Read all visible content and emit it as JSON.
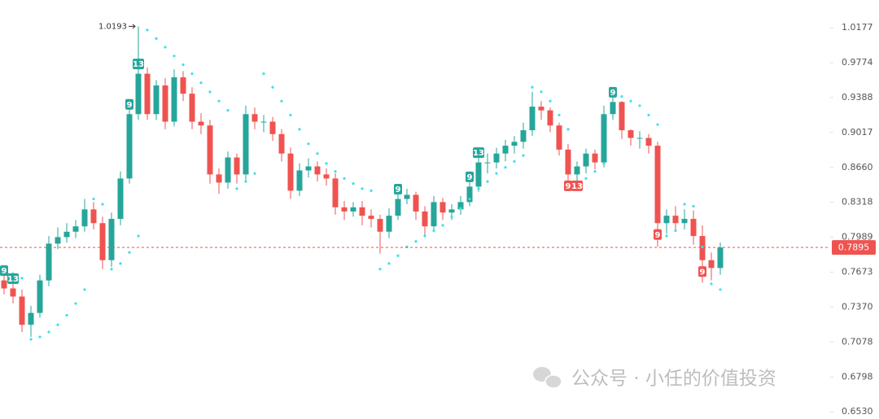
{
  "chart_data": {
    "type": "candlestick",
    "log": true,
    "ylim": [
      0.65,
      1.0508
    ],
    "yticks": [
      1.0177,
      0.9774,
      0.9388,
      0.9017,
      {
        "value": 0.866,
        "label": "0.8660"
      },
      0.8318,
      0.7989,
      0.7673,
      {
        "value": 0.737,
        "label": "0.7370"
      },
      0.7078,
      0.6798,
      {
        "value": 0.653,
        "label": "0.6530"
      }
    ],
    "up_color": "#26a69a",
    "down_color": "#ef5350",
    "open": [
      0.76,
      0.753,
      0.746,
      0.722,
      0.732,
      0.76,
      0.793,
      0.799,
      0.804,
      0.809,
      0.825,
      0.812,
      0.778,
      0.816,
      0.855,
      0.921,
      0.965,
      0.921,
      0.952,
      0.913,
      0.961,
      0.943,
      0.913,
      0.909,
      0.859,
      0.851,
      0.876,
      0.859,
      0.921,
      0.913,
      0.913,
      0.9,
      0.88,
      0.843,
      0.863,
      0.867,
      0.859,
      0.855,
      0.827,
      0.823,
      0.827,
      0.819,
      0.816,
      0.804,
      0.819,
      0.835,
      0.839,
      0.823,
      0.809,
      0.832,
      0.822,
      0.825,
      0.832,
      0.847,
      0.871,
      0.871,
      0.88,
      0.888,
      0.892,
      0.904,
      0.929,
      0.925,
      0.909,
      0.884,
      0.859,
      0.867,
      0.88,
      0.871,
      0.921,
      0.934,
      0.904,
      0.896,
      0.896,
      0.888,
      0.812,
      0.819,
      0.812,
      0.816,
      0.8,
      0.778,
      0.771
    ],
    "high": [
      0.768,
      0.762,
      0.752,
      0.738,
      0.765,
      0.8,
      0.808,
      0.812,
      0.815,
      0.835,
      0.832,
      0.818,
      0.822,
      0.862,
      0.93,
      1.0193,
      0.972,
      0.958,
      0.96,
      0.97,
      0.968,
      0.95,
      0.922,
      0.915,
      0.865,
      0.882,
      0.88,
      0.93,
      0.928,
      0.92,
      0.918,
      0.905,
      0.886,
      0.87,
      0.875,
      0.872,
      0.865,
      0.86,
      0.833,
      0.832,
      0.833,
      0.825,
      0.82,
      0.826,
      0.84,
      0.845,
      0.842,
      0.828,
      0.838,
      0.836,
      0.83,
      0.838,
      0.852,
      0.878,
      0.88,
      0.886,
      0.894,
      0.898,
      0.912,
      0.945,
      0.935,
      0.928,
      0.912,
      0.89,
      0.872,
      0.885,
      0.884,
      0.93,
      0.945,
      0.935,
      0.905,
      0.903,
      0.9,
      0.892,
      0.825,
      0.828,
      0.825,
      0.824,
      0.81,
      0.785,
      0.794
    ],
    "low": [
      0.748,
      0.74,
      0.716,
      0.712,
      0.728,
      0.755,
      0.788,
      0.794,
      0.798,
      0.804,
      0.806,
      0.77,
      0.772,
      0.81,
      0.85,
      0.915,
      0.915,
      0.915,
      0.905,
      0.908,
      0.935,
      0.905,
      0.9,
      0.85,
      0.84,
      0.845,
      0.85,
      0.852,
      0.905,
      0.902,
      0.893,
      0.872,
      0.835,
      0.838,
      0.856,
      0.852,
      0.848,
      0.82,
      0.815,
      0.818,
      0.81,
      0.808,
      0.784,
      0.798,
      0.815,
      0.83,
      0.815,
      0.8,
      0.804,
      0.815,
      0.815,
      0.82,
      0.828,
      0.842,
      0.86,
      0.865,
      0.872,
      0.88,
      0.885,
      0.898,
      0.915,
      0.902,
      0.878,
      0.852,
      0.85,
      0.86,
      0.864,
      0.866,
      0.915,
      0.895,
      0.888,
      0.885,
      0.88,
      0.79,
      0.802,
      0.805,
      0.806,
      0.792,
      0.758,
      0.76,
      0.765
    ],
    "close": [
      0.753,
      0.746,
      0.722,
      0.732,
      0.76,
      0.793,
      0.799,
      0.804,
      0.809,
      0.825,
      0.812,
      0.778,
      0.816,
      0.855,
      0.921,
      0.965,
      0.921,
      0.952,
      0.913,
      0.961,
      0.943,
      0.913,
      0.909,
      0.859,
      0.851,
      0.876,
      0.859,
      0.921,
      0.913,
      0.913,
      0.9,
      0.88,
      0.843,
      0.863,
      0.867,
      0.859,
      0.855,
      0.827,
      0.823,
      0.827,
      0.819,
      0.816,
      0.804,
      0.819,
      0.835,
      0.839,
      0.823,
      0.809,
      0.832,
      0.822,
      0.825,
      0.832,
      0.847,
      0.871,
      0.871,
      0.88,
      0.888,
      0.892,
      0.904,
      0.929,
      0.925,
      0.909,
      0.884,
      0.859,
      0.867,
      0.88,
      0.871,
      0.921,
      0.934,
      0.904,
      0.896,
      0.896,
      0.888,
      0.812,
      0.819,
      0.812,
      0.816,
      0.8,
      0.778,
      0.771,
      0.7895
    ],
    "sar_color": "#3fe0e8",
    "sar": [
      0.77,
      0.766,
      0.762,
      0.71,
      0.712,
      0.716,
      0.722,
      0.73,
      0.74,
      0.752,
      0.835,
      0.83,
      0.77,
      0.775,
      0.785,
      0.8,
      1.015,
      1.005,
      0.995,
      0.985,
      0.975,
      0.965,
      0.955,
      0.945,
      0.935,
      0.925,
      0.845,
      0.852,
      0.86,
      0.965,
      0.95,
      0.935,
      0.92,
      0.905,
      0.89,
      0.88,
      0.87,
      0.862,
      0.855,
      0.85,
      0.845,
      0.843,
      0.77,
      0.775,
      0.782,
      0.79,
      0.795,
      0.8,
      0.805,
      0.81,
      0.818,
      0.826,
      0.835,
      0.845,
      0.852,
      0.86,
      0.866,
      0.872,
      0.878,
      0.95,
      0.945,
      0.935,
      0.92,
      0.905,
      0.85,
      0.855,
      0.862,
      0.87,
      0.945,
      0.94,
      0.935,
      0.93,
      0.92,
      0.91,
      0.8,
      0.805,
      0.83,
      0.828,
      0.79,
      0.757,
      0.752
    ],
    "td_labels": [
      {
        "index": 0,
        "label": "9",
        "color": "#26a69a"
      },
      {
        "index": 1,
        "label": "13",
        "color": "#26a69a"
      },
      {
        "index": 14,
        "label": "9",
        "color": "#26a69a"
      },
      {
        "index": 15,
        "label": "13",
        "color": "#26a69a"
      },
      {
        "index": 44,
        "label": "9",
        "color": "#26a69a"
      },
      {
        "index": 52,
        "label": "9",
        "color": "#26a69a"
      },
      {
        "index": 53,
        "label": "13",
        "color": "#26a69a"
      },
      {
        "index": 63,
        "label": "9",
        "color": "#ef5350"
      },
      {
        "index": 64,
        "label": "13",
        "color": "#ef5350"
      },
      {
        "index": 68,
        "label": "9",
        "color": "#26a69a"
      },
      {
        "index": 73,
        "label": "9",
        "color": "#ef5350"
      },
      {
        "index": 78,
        "label": "9",
        "color": "#ef5350"
      }
    ],
    "last_price_color": "#ef5350",
    "watermark": "公众号 · 小任的价值投资"
  }
}
